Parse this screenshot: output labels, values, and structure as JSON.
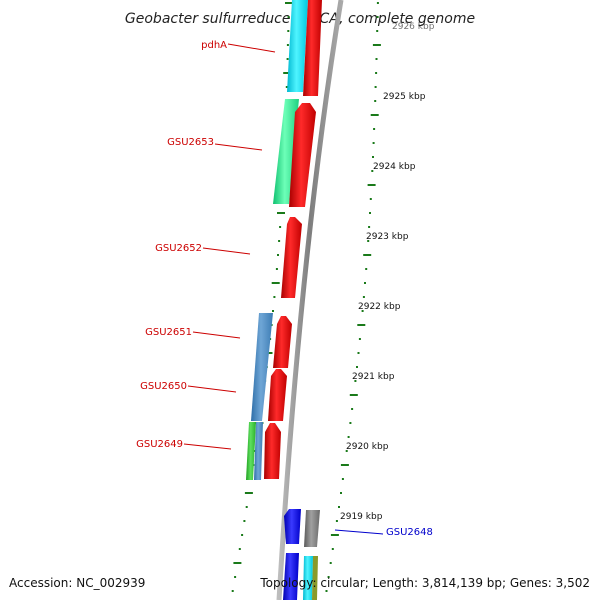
{
  "title": "Geobacter sulfurreducens PCA, complete genome",
  "footer": {
    "accession": "Accession: NC_002939",
    "summary": "Topology: circular; Length: 3,814,139 bp; Genes: 3,502"
  },
  "colors": {
    "backbone": "#8c8c8c",
    "forward_gene": "#ff0000",
    "tick": "#1a7a1a",
    "label_red": "#cc0000",
    "label_blue": "#0000cc"
  },
  "scale_labels": [
    "2925 kbp",
    "2924 kbp",
    "2923 kbp",
    "2922 kbp",
    "2921 kbp",
    "2920 kbp",
    "2919 kbp"
  ],
  "gene_labels": [
    {
      "name": "pdhA",
      "color": "#cc0000"
    },
    {
      "name": "GSU2653",
      "color": "#cc0000"
    },
    {
      "name": "GSU2652",
      "color": "#cc0000"
    },
    {
      "name": "GSU2651",
      "color": "#cc0000"
    },
    {
      "name": "GSU2650",
      "color": "#cc0000"
    },
    {
      "name": "GSU2649",
      "color": "#cc0000"
    },
    {
      "name": "GSU2648",
      "color": "#0000cc"
    }
  ]
}
